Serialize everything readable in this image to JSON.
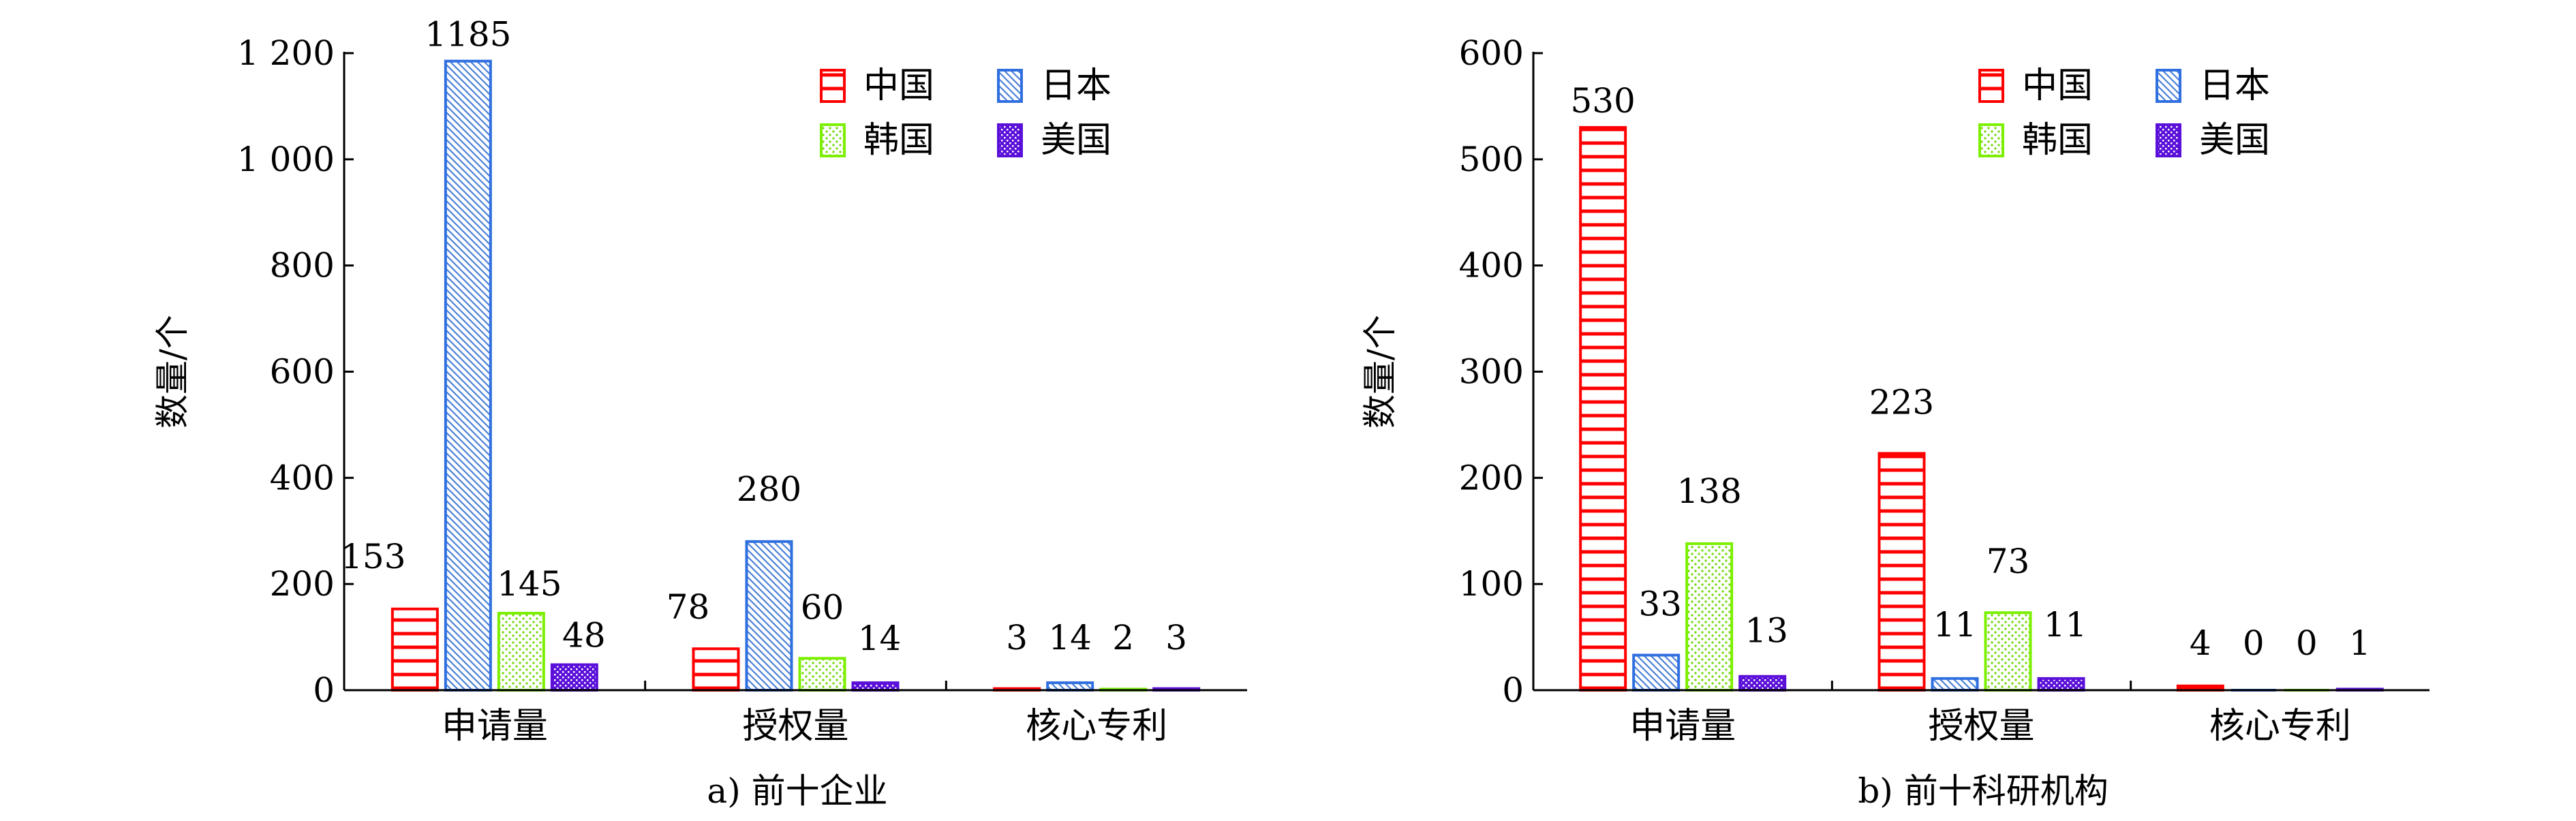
{
  "chart_data": [
    {
      "type": "bar",
      "caption": "a) 前十企业",
      "ylabel": "数量/个",
      "categories": [
        "申请量",
        "授权量",
        "核心专利"
      ],
      "ylim": [
        0,
        1200
      ],
      "yticks": [
        0,
        200,
        400,
        600,
        800,
        1000,
        1200
      ],
      "ytick_labels": [
        "0",
        "200",
        "400",
        "600",
        "800",
        "1 000",
        "1 200"
      ],
      "legend_position": "top-right",
      "series": [
        {
          "name": "中国",
          "values": [
            153,
            78,
            3
          ],
          "color": "#ff0000",
          "pattern": "horizontal-lines"
        },
        {
          "name": "日本",
          "values": [
            1185,
            280,
            14
          ],
          "color": "#2f6fe0",
          "pattern": "diagonal-hatch"
        },
        {
          "name": "韩国",
          "values": [
            145,
            60,
            2
          ],
          "color": "#7cf000",
          "pattern": "dots"
        },
        {
          "name": "美国",
          "values": [
            48,
            14,
            3
          ],
          "color": "#5a10d8",
          "pattern": "crosshatch"
        }
      ]
    },
    {
      "type": "bar",
      "caption": "b) 前十科研机构",
      "ylabel": "数量/个",
      "categories": [
        "申请量",
        "授权量",
        "核心专利"
      ],
      "ylim": [
        0,
        600
      ],
      "yticks": [
        0,
        100,
        200,
        300,
        400,
        500,
        600
      ],
      "ytick_labels": [
        "0",
        "100",
        "200",
        "300",
        "400",
        "500",
        "600"
      ],
      "legend_position": "top-right",
      "series": [
        {
          "name": "中国",
          "values": [
            530,
            223,
            4
          ],
          "color": "#ff0000",
          "pattern": "horizontal-lines"
        },
        {
          "name": "日本",
          "values": [
            33,
            11,
            0
          ],
          "color": "#2f6fe0",
          "pattern": "diagonal-hatch"
        },
        {
          "name": "韩国",
          "values": [
            138,
            73,
            0
          ],
          "color": "#7cf000",
          "pattern": "dots"
        },
        {
          "name": "美国",
          "values": [
            13,
            11,
            1
          ],
          "color": "#5a10d8",
          "pattern": "crosshatch"
        }
      ]
    }
  ]
}
